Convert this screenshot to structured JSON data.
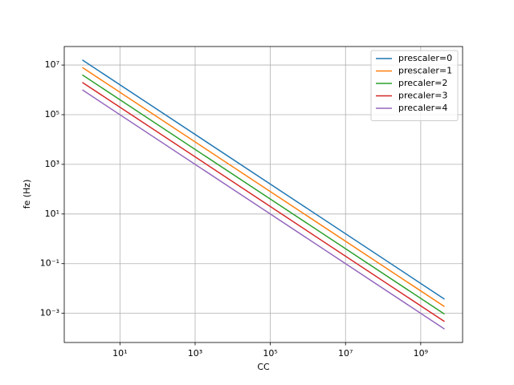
{
  "chart_data": {
    "type": "line",
    "x_label": "CC",
    "y_label": "fe (Hz)",
    "x": [
      1,
      4294967296
    ],
    "series": [
      {
        "name": "prescaler=0",
        "color": "#1f77b4",
        "values": [
          16000000,
          0.003725
        ]
      },
      {
        "name": "prescaler=1",
        "color": "#ff7f0e",
        "values": [
          8000000,
          0.001863
        ]
      },
      {
        "name": "precaler=2",
        "color": "#2ca02c",
        "values": [
          4000000,
          0.000931
        ]
      },
      {
        "name": "precaler=3",
        "color": "#d62728",
        "values": [
          2000000,
          0.000466
        ]
      },
      {
        "name": "precaler=4",
        "color": "#9467bd",
        "values": [
          1000000,
          0.000233
        ]
      }
    ],
    "x_log": true,
    "y_log": true,
    "xlim": [
      0.33,
      13000000000
    ],
    "ylim": [
      6.68e-05,
      55700000
    ],
    "xticks": [
      {
        "value": 10,
        "label": "10¹"
      },
      {
        "value": 1000,
        "label": "10³"
      },
      {
        "value": 100000,
        "label": "10⁵"
      },
      {
        "value": 10000000,
        "label": "10⁷"
      },
      {
        "value": 1000000000,
        "label": "10⁹"
      }
    ],
    "yticks": [
      {
        "value": 0.001,
        "label": "10⁻³"
      },
      {
        "value": 0.1,
        "label": "10⁻¹"
      },
      {
        "value": 10,
        "label": "10¹"
      },
      {
        "value": 1000,
        "label": "10³"
      },
      {
        "value": 100000,
        "label": "10⁵"
      },
      {
        "value": 10000000,
        "label": "10⁷"
      }
    ],
    "grid": true,
    "legend": "upper-right"
  }
}
